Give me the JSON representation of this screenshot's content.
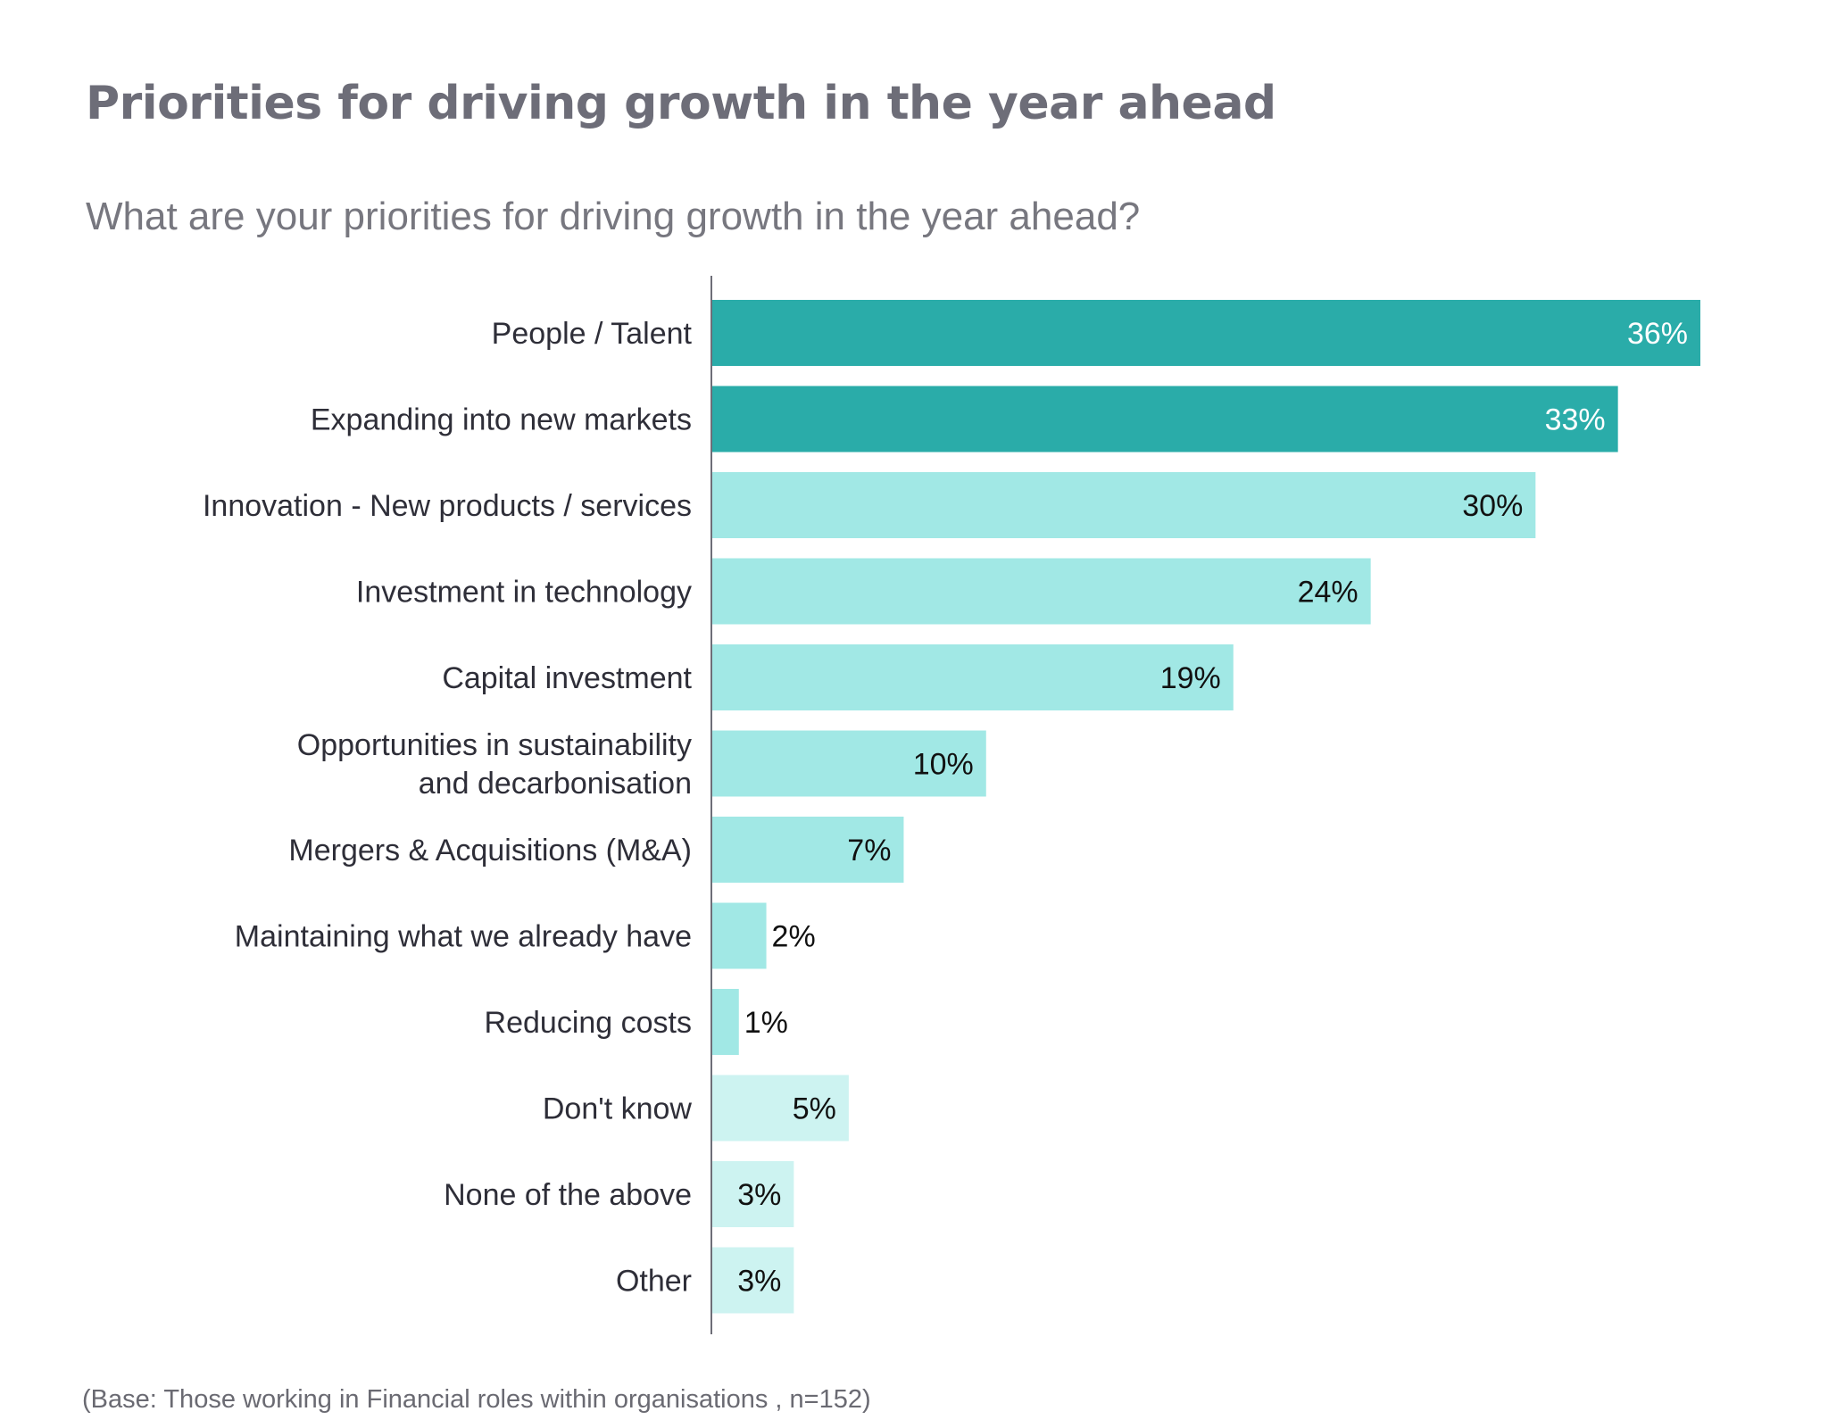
{
  "title": "Priorities for driving growth in the year ahead",
  "subtitle": "What are your priorities for driving growth in the year ahead?",
  "footnote": "(Base: Those working in Financial roles within organisations , n=152)",
  "colors": {
    "dark": "#2aaca9",
    "medium": "#a1e8e5",
    "light": "#cdf3f1",
    "axis": "#6e6e78",
    "label_text": "#2e2e38",
    "value_on_dark": "#ffffff",
    "value_on_light": "#111111"
  },
  "chart_data": {
    "type": "bar",
    "orientation": "horizontal",
    "title": "Priorities for driving growth in the year ahead",
    "xlabel": "",
    "ylabel": "",
    "xlim": [
      0,
      36
    ],
    "grid": false,
    "categories": [
      [
        "People / Talent"
      ],
      [
        "Expanding into new markets"
      ],
      [
        "Innovation - New products / services"
      ],
      [
        "Investment in technology"
      ],
      [
        "Capital investment"
      ],
      [
        "Opportunities in sustainability",
        "and decarbonisation"
      ],
      [
        "Mergers & Acquisitions (M&A)"
      ],
      [
        "Maintaining what we already have"
      ],
      [
        "Reducing costs"
      ],
      [
        "Don't know"
      ],
      [
        "None of the above"
      ],
      [
        "Other"
      ]
    ],
    "values": [
      36,
      33,
      30,
      24,
      19,
      10,
      7,
      2,
      1,
      5,
      3,
      3
    ],
    "value_labels": [
      "36%",
      "33%",
      "30%",
      "24%",
      "19%",
      "10%",
      "7%",
      "2%",
      "1%",
      "5%",
      "3%",
      "3%"
    ],
    "shade": [
      "dark",
      "dark",
      "medium",
      "medium",
      "medium",
      "medium",
      "medium",
      "medium",
      "medium",
      "light",
      "light",
      "light"
    ]
  }
}
